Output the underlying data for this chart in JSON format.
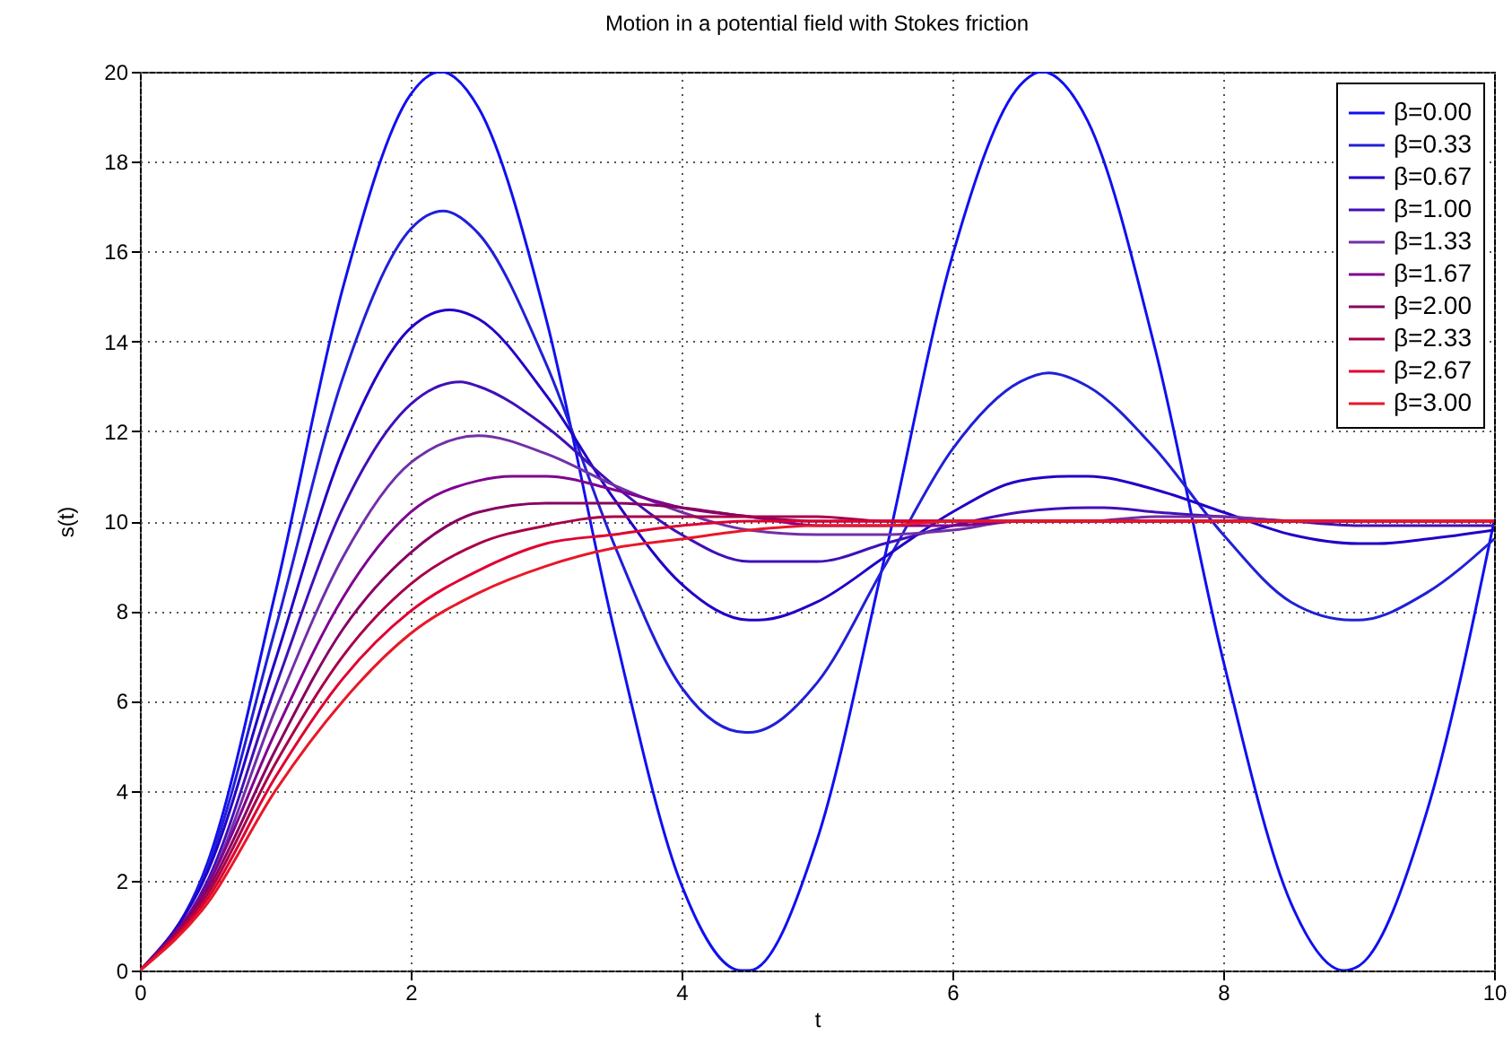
{
  "chart_data": {
    "type": "line",
    "title": "Motion in a potential field with Stokes friction",
    "xlabel": "t",
    "ylabel": "s(t)",
    "xlim": [
      0,
      10
    ],
    "ylim": [
      0,
      20
    ],
    "xticks": [
      0,
      2,
      4,
      6,
      8,
      10
    ],
    "yticks": [
      0,
      2,
      4,
      6,
      8,
      10,
      12,
      14,
      16,
      18,
      20
    ],
    "grid": true,
    "legend": "top right",
    "series": [
      {
        "name": "β=0.00",
        "color": "#1010f0",
        "x": [
          0,
          0.5,
          1,
          1.5,
          2,
          2.22,
          2.5,
          3,
          3.5,
          4,
          4.44,
          4.5,
          5,
          5.5,
          6,
          6.5,
          6.66,
          7,
          7.5,
          8,
          8.5,
          8.89,
          9,
          9.5,
          10
        ],
        "values": [
          0,
          2.4,
          8.4,
          15.2,
          19.5,
          20,
          19.2,
          14.5,
          7.6,
          1.9,
          0,
          0.0,
          2.9,
          9.2,
          15.9,
          19.7,
          20,
          18.9,
          13.8,
          6.9,
          1.5,
          0,
          0.1,
          3.5,
          10.0
        ]
      },
      {
        "name": "β=0.33",
        "color": "#2020d8",
        "x": [
          0,
          0.5,
          1,
          1.5,
          2,
          2.24,
          2.5,
          3,
          3.5,
          4,
          4.47,
          4.5,
          5,
          5.5,
          6,
          6.5,
          6.71,
          7,
          7.5,
          8,
          8.5,
          8.95,
          9,
          9.5,
          10
        ],
        "values": [
          0,
          2.3,
          7.6,
          13.2,
          16.5,
          16.9,
          16.4,
          13.5,
          9.5,
          6.3,
          5.3,
          5.3,
          6.4,
          9.0,
          11.6,
          13.1,
          13.3,
          13.0,
          11.6,
          9.7,
          8.2,
          7.8,
          7.8,
          8.4,
          9.6
        ]
      },
      {
        "name": "β=0.67",
        "color": "#2000c8",
        "x": [
          0,
          0.5,
          1,
          1.5,
          2,
          2.29,
          2.5,
          3,
          3.5,
          4,
          4.5,
          4.57,
          5,
          5.5,
          6,
          6.5,
          6.86,
          7,
          7.5,
          8,
          8.5,
          9,
          9.14,
          9.5,
          10
        ],
        "values": [
          0,
          2.2,
          6.9,
          11.6,
          14.3,
          14.7,
          14.5,
          12.8,
          10.5,
          8.6,
          7.8,
          7.8,
          8.2,
          9.2,
          10.2,
          10.9,
          11.0,
          11.0,
          10.7,
          10.2,
          9.7,
          9.5,
          9.5,
          9.6,
          9.8
        ]
      },
      {
        "name": "β=1.00",
        "color": "#4010b8",
        "x": [
          0,
          0.5,
          1,
          1.5,
          2,
          2.37,
          2.5,
          3,
          3.5,
          4,
          4.5,
          4.75,
          5,
          5.5,
          6,
          6.5,
          7,
          7.12,
          7.5,
          8,
          8.5,
          9,
          9.5,
          10
        ],
        "values": [
          0,
          2.0,
          6.3,
          10.3,
          12.6,
          13.1,
          13.0,
          12.1,
          10.8,
          9.7,
          9.1,
          9.1,
          9.1,
          9.5,
          9.9,
          10.2,
          10.3,
          10.3,
          10.2,
          10.1,
          10.0,
          9.9,
          9.9,
          9.9
        ]
      },
      {
        "name": "β=1.33",
        "color": "#7030a8",
        "x": [
          0,
          0.5,
          1,
          1.5,
          2,
          2.5,
          3,
          3.5,
          4,
          4.5,
          5,
          5.5,
          6,
          6.5,
          7,
          7.5,
          8,
          8.5,
          9,
          9.5,
          10
        ],
        "values": [
          0,
          1.9,
          5.8,
          9.2,
          11.3,
          11.9,
          11.5,
          10.8,
          10.2,
          9.8,
          9.7,
          9.7,
          9.8,
          10.0,
          10.0,
          10.1,
          10.1,
          10.0,
          10.0,
          10.0,
          10.0
        ]
      },
      {
        "name": "β=1.67",
        "color": "#800090",
        "x": [
          0,
          0.5,
          1,
          1.5,
          2,
          2.5,
          2.75,
          3,
          3.5,
          4,
          4.5,
          5,
          5.5,
          6,
          6.5,
          7,
          7.5,
          8,
          8.5,
          9
        ],
        "values": [
          0,
          1.9,
          5.3,
          8.3,
          10.2,
          10.9,
          11.0,
          11.0,
          10.7,
          10.3,
          10.1,
          9.9,
          9.9,
          9.9,
          10.0,
          10.0,
          10.0,
          10.0,
          10.0,
          10.0
        ]
      },
      {
        "name": "β=2.00",
        "color": "#880060",
        "x": [
          0,
          0.5,
          1,
          1.5,
          2,
          2.5,
          3,
          3.14,
          3.5,
          4,
          4.5,
          5,
          5.5,
          6,
          6.5,
          7,
          7.5,
          8,
          8.5
        ],
        "values": [
          0,
          1.8,
          4.9,
          7.6,
          9.3,
          10.2,
          10.4,
          10.4,
          10.4,
          10.3,
          10.1,
          10.0,
          10.0,
          10.0,
          10.0,
          10.0,
          10.0,
          10.0,
          10.0
        ]
      },
      {
        "name": "β=2.33",
        "color": "#a80048",
        "x": [
          0,
          0.5,
          1,
          1.5,
          2,
          2.5,
          3,
          3.5,
          4,
          4.5,
          5,
          5.5,
          6,
          6.5,
          7,
          7.5,
          8,
          8.5,
          9,
          9.5,
          10
        ],
        "values": [
          0,
          1.7,
          4.6,
          7.0,
          8.6,
          9.5,
          9.9,
          10.1,
          10.1,
          10.1,
          10.1,
          10.0,
          10.0,
          10.0,
          10.0,
          10.0,
          10.0,
          10.0,
          10.0,
          10.0,
          10.0
        ]
      },
      {
        "name": "β=2.67",
        "color": "#e00030",
        "x": [
          0,
          0.5,
          1,
          1.5,
          2,
          2.5,
          3,
          3.5,
          4,
          4.5,
          5,
          5.5,
          6,
          6.5,
          7,
          7.5,
          8,
          8.5,
          9,
          9.5,
          10
        ],
        "values": [
          0,
          1.6,
          4.3,
          6.5,
          8.0,
          8.9,
          9.5,
          9.7,
          9.9,
          10.0,
          10.0,
          10.0,
          10.0,
          10.0,
          10.0,
          10.0,
          10.0,
          10.0,
          10.0,
          10.0,
          10.0
        ]
      },
      {
        "name": "β=3.00",
        "color": "#e81828",
        "x": [
          0,
          0.5,
          1,
          1.5,
          2,
          2.5,
          3,
          3.5,
          4,
          4.5,
          5,
          5.5,
          6,
          6.5,
          7,
          7.5,
          8,
          8.5,
          9,
          9.5,
          10
        ],
        "values": [
          0,
          1.5,
          4.0,
          6.0,
          7.5,
          8.4,
          9.0,
          9.4,
          9.6,
          9.8,
          9.9,
          9.9,
          10.0,
          10.0,
          10.0,
          10.0,
          10.0,
          10.0,
          10.0,
          10.0,
          10.0
        ]
      }
    ]
  }
}
